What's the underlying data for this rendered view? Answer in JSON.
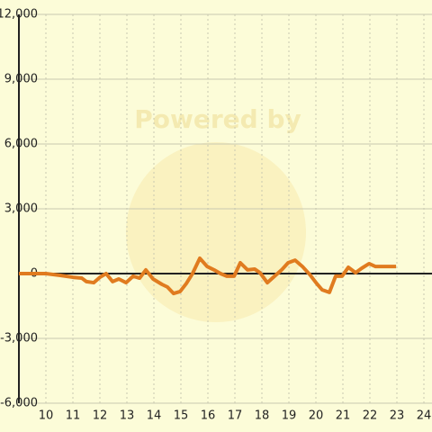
{
  "chart_data": {
    "type": "line",
    "watermark": "Powered by",
    "x": [
      9.0,
      10.0,
      10.5,
      11.0,
      11.33,
      11.5,
      11.77,
      12.0,
      12.23,
      12.47,
      12.7,
      12.97,
      13.23,
      13.47,
      13.7,
      13.97,
      14.3,
      14.5,
      14.73,
      14.97,
      15.2,
      15.43,
      15.7,
      15.97,
      16.23,
      16.47,
      16.7,
      16.97,
      17.2,
      17.47,
      17.73,
      17.93,
      18.2,
      18.47,
      18.73,
      18.97,
      19.23,
      19.5,
      19.77,
      20.03,
      20.23,
      20.5,
      20.73,
      20.97,
      21.2,
      21.47,
      21.7,
      21.97,
      22.2,
      22.47,
      22.97
    ],
    "series": [
      {
        "color": "#e07b1f",
        "values": [
          0,
          0,
          -80,
          -170,
          -210,
          -370,
          -420,
          -170,
          0,
          -370,
          -250,
          -420,
          -120,
          -210,
          170,
          -250,
          -500,
          -620,
          -920,
          -830,
          -460,
          0,
          710,
          330,
          170,
          0,
          -120,
          -120,
          500,
          170,
          210,
          40,
          -420,
          -120,
          170,
          500,
          620,
          330,
          -40,
          -460,
          -750,
          -870,
          -120,
          -120,
          290,
          40,
          250,
          460,
          330,
          330,
          330
        ]
      }
    ],
    "xlim": [
      9,
      24.3
    ],
    "xticks": [
      10,
      11,
      12,
      13,
      14,
      15,
      16,
      17,
      18,
      19,
      20,
      21,
      22,
      23,
      24
    ],
    "ylim": [
      -6000,
      12000
    ],
    "yticks": [
      {
        "value": -6000,
        "label": "-6,000"
      },
      {
        "value": -3000,
        "label": "-3,000"
      },
      0,
      {
        "value": 3000,
        "label": "3,000"
      },
      {
        "value": 6000,
        "label": "6,000"
      },
      {
        "value": 9000,
        "label": "9,000"
      },
      {
        "value": 12000,
        "label": "12,000"
      }
    ],
    "grid": true
  }
}
